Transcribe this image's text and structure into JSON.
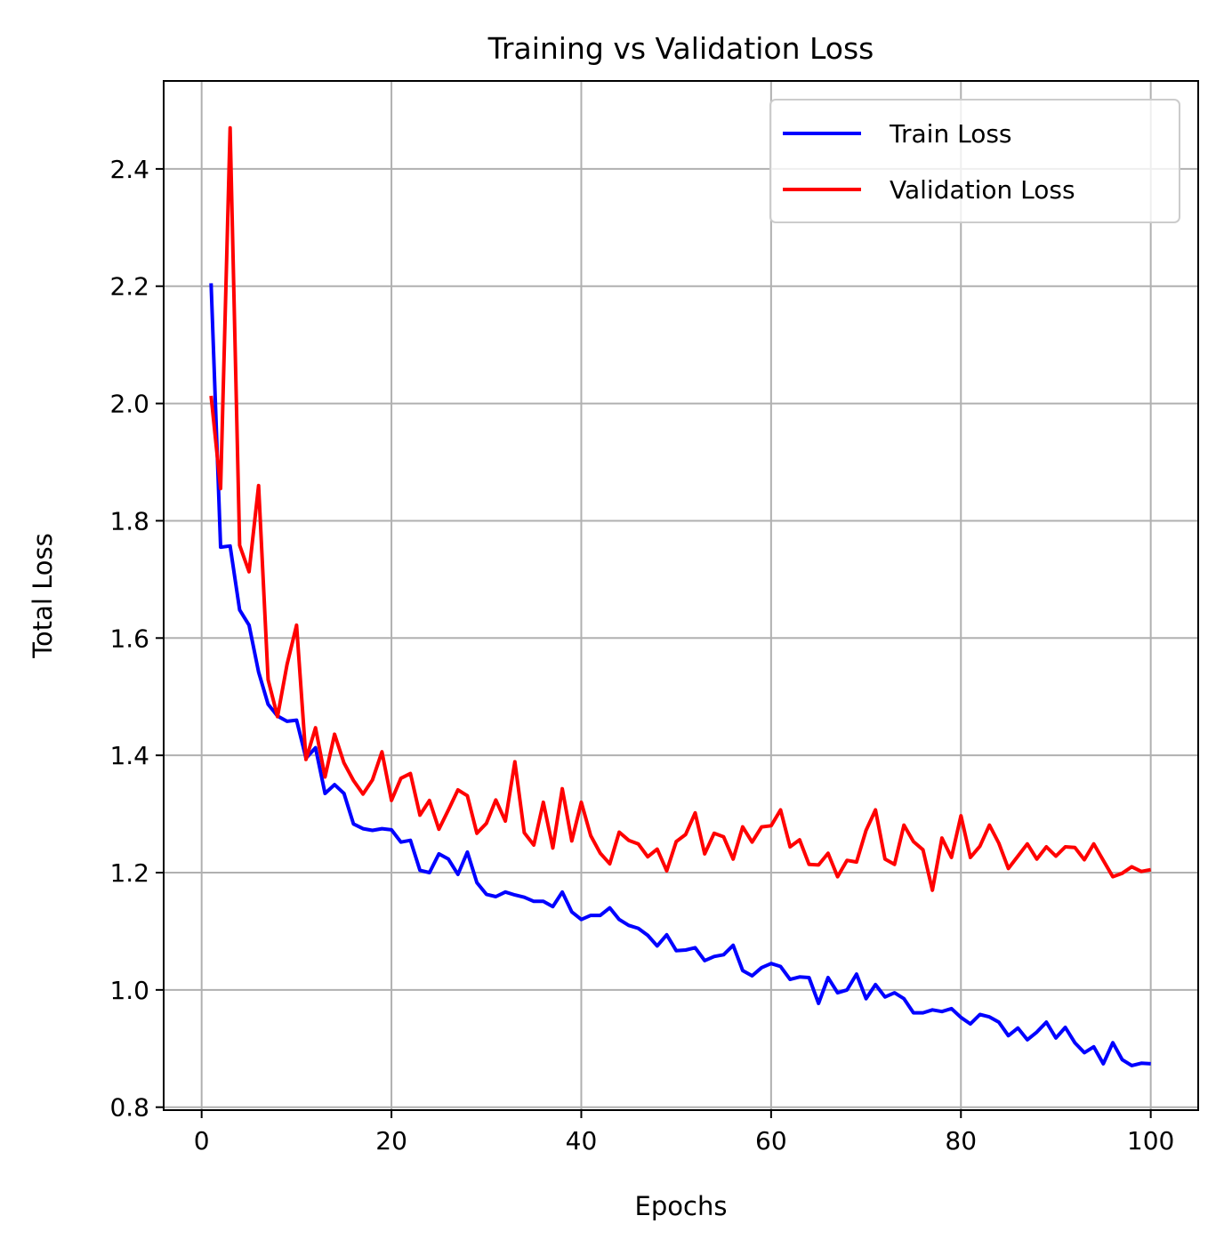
{
  "chart_data": {
    "type": "line",
    "title": "Training vs Validation Loss",
    "xlabel": "Epochs",
    "ylabel": "Total Loss",
    "xlim": [
      -4,
      105
    ],
    "ylim": [
      0.795,
      2.55
    ],
    "xticks": [
      0,
      20,
      40,
      60,
      80,
      100
    ],
    "xtick_labels": [
      "0",
      "20",
      "40",
      "60",
      "80",
      "100"
    ],
    "yticks": [
      0.8,
      1.0,
      1.2,
      1.4,
      1.6,
      1.8,
      2.0,
      2.2,
      2.4
    ],
    "ytick_labels": [
      "0.8",
      "1.0",
      "1.2",
      "1.4",
      "1.6",
      "1.8",
      "2.0",
      "2.2",
      "2.4"
    ],
    "grid": true,
    "legend_position": "top-right",
    "x": [
      1,
      2,
      3,
      4,
      5,
      6,
      7,
      8,
      9,
      10,
      11,
      12,
      13,
      14,
      15,
      16,
      17,
      18,
      19,
      20,
      21,
      22,
      23,
      24,
      25,
      26,
      27,
      28,
      29,
      30,
      31,
      32,
      33,
      34,
      35,
      36,
      37,
      38,
      39,
      40,
      41,
      42,
      43,
      44,
      45,
      46,
      47,
      48,
      49,
      50,
      51,
      52,
      53,
      54,
      55,
      56,
      57,
      58,
      59,
      60,
      61,
      62,
      63,
      64,
      65,
      66,
      67,
      68,
      69,
      70,
      71,
      72,
      73,
      74,
      75,
      76,
      77,
      78,
      79,
      80,
      81,
      82,
      83,
      84,
      85,
      86,
      87,
      88,
      89,
      90,
      91,
      92,
      93,
      94,
      95,
      96,
      97,
      98,
      99,
      100
    ],
    "series": [
      {
        "name": "Train Loss",
        "color": "#0000ff",
        "values": [
          2.205,
          1.755,
          1.757,
          1.648,
          1.622,
          1.542,
          1.487,
          1.467,
          1.458,
          1.46,
          1.395,
          1.413,
          1.335,
          1.35,
          1.335,
          1.283,
          1.275,
          1.272,
          1.275,
          1.273,
          1.252,
          1.255,
          1.204,
          1.2,
          1.232,
          1.223,
          1.197,
          1.235,
          1.183,
          1.163,
          1.159,
          1.167,
          1.162,
          1.158,
          1.151,
          1.151,
          1.142,
          1.167,
          1.133,
          1.12,
          1.127,
          1.127,
          1.14,
          1.12,
          1.11,
          1.105,
          1.093,
          1.075,
          1.094,
          1.067,
          1.068,
          1.072,
          1.05,
          1.057,
          1.06,
          1.076,
          1.033,
          1.024,
          1.038,
          1.045,
          1.04,
          1.018,
          1.022,
          1.021,
          0.977,
          1.021,
          0.995,
          1.0,
          1.027,
          0.985,
          1.009,
          0.988,
          0.995,
          0.985,
          0.961,
          0.961,
          0.966,
          0.963,
          0.968,
          0.953,
          0.942,
          0.958,
          0.954,
          0.945,
          0.922,
          0.935,
          0.915,
          0.928,
          0.945,
          0.918,
          0.936,
          0.91,
          0.893,
          0.903,
          0.874,
          0.91,
          0.881,
          0.871,
          0.875,
          0.874
        ]
      },
      {
        "name": "Validation Loss",
        "color": "#ff0000",
        "values": [
          2.013,
          1.855,
          2.47,
          1.758,
          1.713,
          1.86,
          1.529,
          1.466,
          1.555,
          1.622,
          1.393,
          1.447,
          1.363,
          1.436,
          1.387,
          1.357,
          1.334,
          1.358,
          1.406,
          1.323,
          1.361,
          1.369,
          1.298,
          1.323,
          1.274,
          1.307,
          1.341,
          1.331,
          1.267,
          1.284,
          1.324,
          1.288,
          1.389,
          1.268,
          1.247,
          1.32,
          1.242,
          1.343,
          1.254,
          1.32,
          1.263,
          1.233,
          1.215,
          1.269,
          1.255,
          1.249,
          1.227,
          1.24,
          1.203,
          1.253,
          1.265,
          1.302,
          1.232,
          1.267,
          1.261,
          1.223,
          1.278,
          1.252,
          1.278,
          1.28,
          1.307,
          1.244,
          1.256,
          1.214,
          1.213,
          1.233,
          1.193,
          1.221,
          1.218,
          1.272,
          1.307,
          1.223,
          1.214,
          1.281,
          1.253,
          1.239,
          1.17,
          1.259,
          1.226,
          1.297,
          1.226,
          1.245,
          1.281,
          1.25,
          1.207,
          1.228,
          1.249,
          1.223,
          1.244,
          1.228,
          1.244,
          1.243,
          1.222,
          1.249,
          1.221,
          1.193,
          1.199,
          1.21,
          1.202,
          1.205
        ]
      }
    ]
  }
}
